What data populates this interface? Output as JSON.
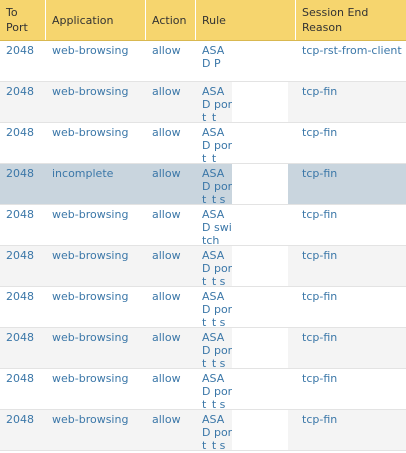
{
  "columns": {
    "to_port": "To Port",
    "application": "Application",
    "action": "Action",
    "rule": "Rule",
    "session_end": "Session End Reason"
  },
  "rows": [
    {
      "port": "2048",
      "app": "web-browsing",
      "action": "allow",
      "rule": "ASA D P",
      "end": "tcp-rst-from-client"
    },
    {
      "port": "2048",
      "app": "web-browsing",
      "action": "allow",
      "rule": "ASA D port_t",
      "end": "tcp-fin"
    },
    {
      "port": "2048",
      "app": "web-browsing",
      "action": "allow",
      "rule": "ASA D port_t",
      "end": "tcp-fin"
    },
    {
      "port": "2048",
      "app": "incomplete",
      "action": "allow",
      "rule": "ASA D port_t switc",
      "end": "tcp-fin"
    },
    {
      "port": "2048",
      "app": "web-browsing",
      "action": "allow",
      "rule": "ASA D switch",
      "end": "tcp-fin"
    },
    {
      "port": "2048",
      "app": "web-browsing",
      "action": "allow",
      "rule": "ASA D port_t switc",
      "end": "tcp-fin"
    },
    {
      "port": "2048",
      "app": "web-browsing",
      "action": "allow",
      "rule": "ASA D port_t switc",
      "end": "tcp-fin"
    },
    {
      "port": "2048",
      "app": "web-browsing",
      "action": "allow",
      "rule": "ASA D port_t switc",
      "end": "tcp-fin"
    },
    {
      "port": "2048",
      "app": "web-browsing",
      "action": "allow",
      "rule": "ASA D port_t switc",
      "end": "tcp-fin"
    },
    {
      "port": "2048",
      "app": "web-browsing",
      "action": "allow",
      "rule": "ASA D port_t switc",
      "end": "tcp-fin"
    }
  ],
  "colors": {
    "header_bg": "#f6d56e",
    "link_text": "#3b77a8",
    "selected_row": "#c9d5de"
  }
}
